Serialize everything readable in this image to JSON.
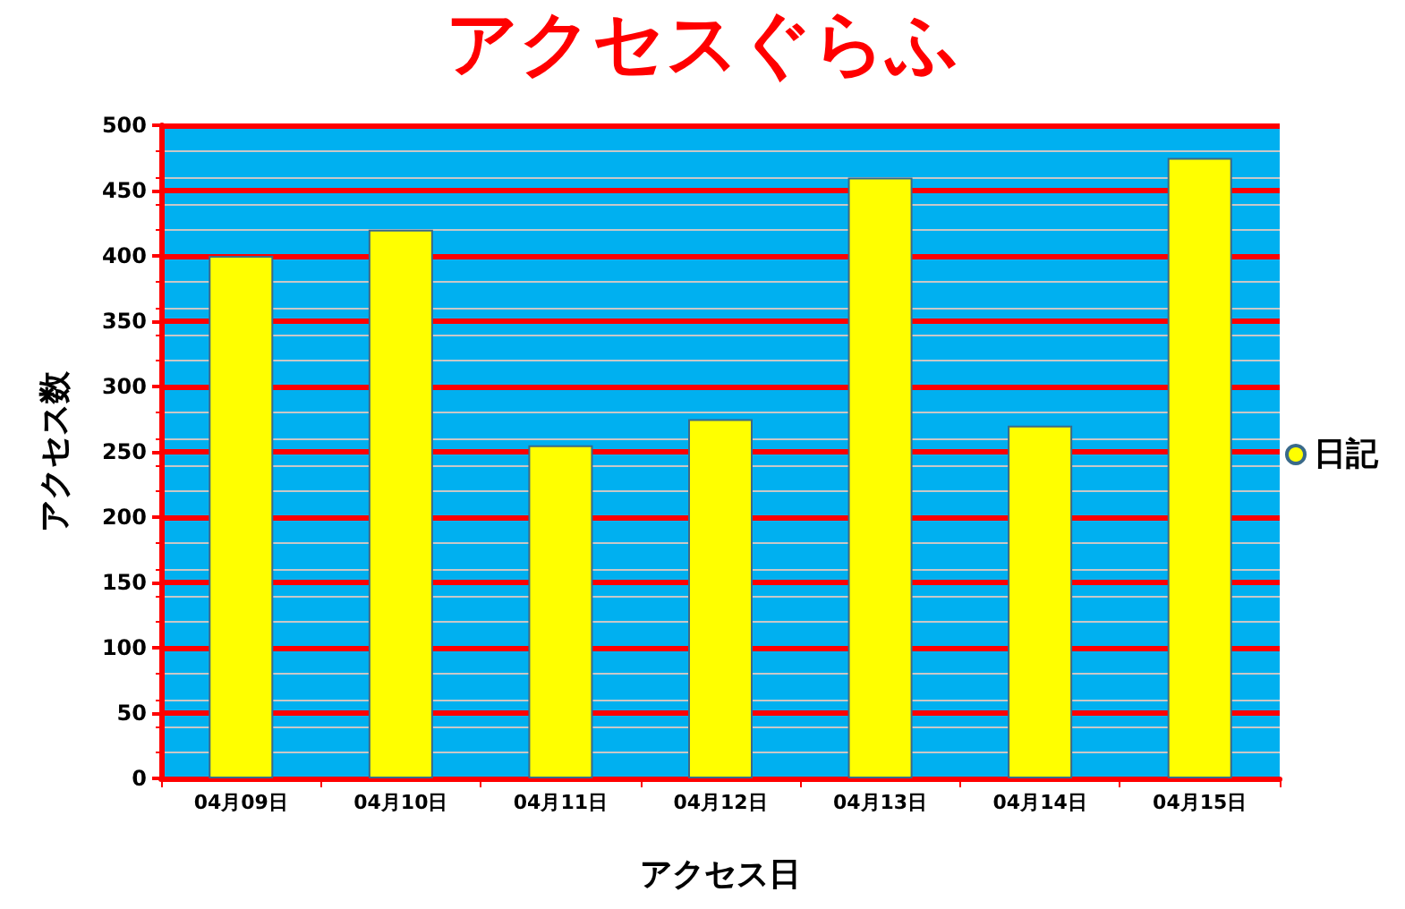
{
  "chart_data": {
    "type": "bar",
    "title": "アクセスぐらふ",
    "xlabel": "アクセス日",
    "ylabel": "アクセス数",
    "categories": [
      "04月09日",
      "04月10日",
      "04月11日",
      "04月12日",
      "04月13日",
      "04月14日",
      "04月15日"
    ],
    "series": [
      {
        "name": "日記",
        "color": "#ffff00",
        "values": [
          400,
          420,
          255,
          275,
          460,
          270,
          475
        ]
      }
    ],
    "ylim": [
      0,
      500
    ],
    "yticks": [
      0,
      50,
      100,
      150,
      200,
      250,
      300,
      350,
      400,
      450,
      500
    ],
    "grid": "y",
    "legend": "right"
  }
}
